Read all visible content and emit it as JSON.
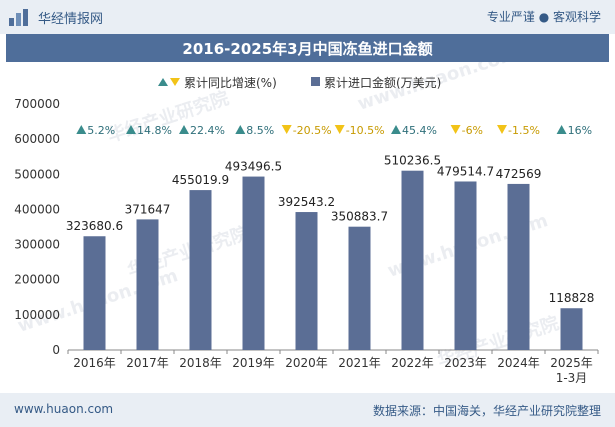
{
  "header": {
    "brand": "华经情报网",
    "tagline": "专业严谨 ● 客观科学"
  },
  "title": "2016-2025年3月中国冻鱼进口金额",
  "footer": {
    "left": "www.huaon.com",
    "right": "数据来源：中国海关，华经产业研究院整理"
  },
  "watermarks": [
    "华经产业研究院",
    "www.huaon.com"
  ],
  "colors": {
    "bar": "#5b6e95",
    "up": "#3a8c8c",
    "down": "#f2c318",
    "title_bg": "#4f6e9a",
    "bar_bg": "#e9eef4"
  },
  "chart_data": {
    "type": "bar",
    "categories": [
      "2016年",
      "2017年",
      "2018年",
      "2019年",
      "2020年",
      "2021年",
      "2022年",
      "2023年",
      "2024年",
      "2025年\n1-3月"
    ],
    "series": [
      {
        "name": "累计进口金额(万美元)",
        "values": [
          323680.6,
          371647,
          455019.9,
          493496.5,
          392543.2,
          350883.7,
          510236.5,
          479514.7,
          472569,
          118828
        ],
        "labels": [
          "323680.6",
          "371647",
          "455019.9",
          "493496.5",
          "392543.2",
          "350883.7",
          "510236.5",
          "479514.7",
          "472569",
          "118828"
        ]
      },
      {
        "name": "累计同比增速(%)",
        "values": [
          5.2,
          14.8,
          22.4,
          8.5,
          -20.5,
          -10.5,
          45.4,
          -6,
          -1.5,
          16
        ],
        "labels": [
          "5.2%",
          "14.8%",
          "22.4%",
          "8.5%",
          "-20.5%",
          "-10.5%",
          "45.4%",
          "-6%",
          "-1.5%",
          "16%"
        ]
      }
    ],
    "y_ticks": [
      "0",
      "100000",
      "200000",
      "300000",
      "400000",
      "500000",
      "600000",
      "700000"
    ],
    "ylim": [
      0,
      700000
    ],
    "legend_position": "top"
  }
}
